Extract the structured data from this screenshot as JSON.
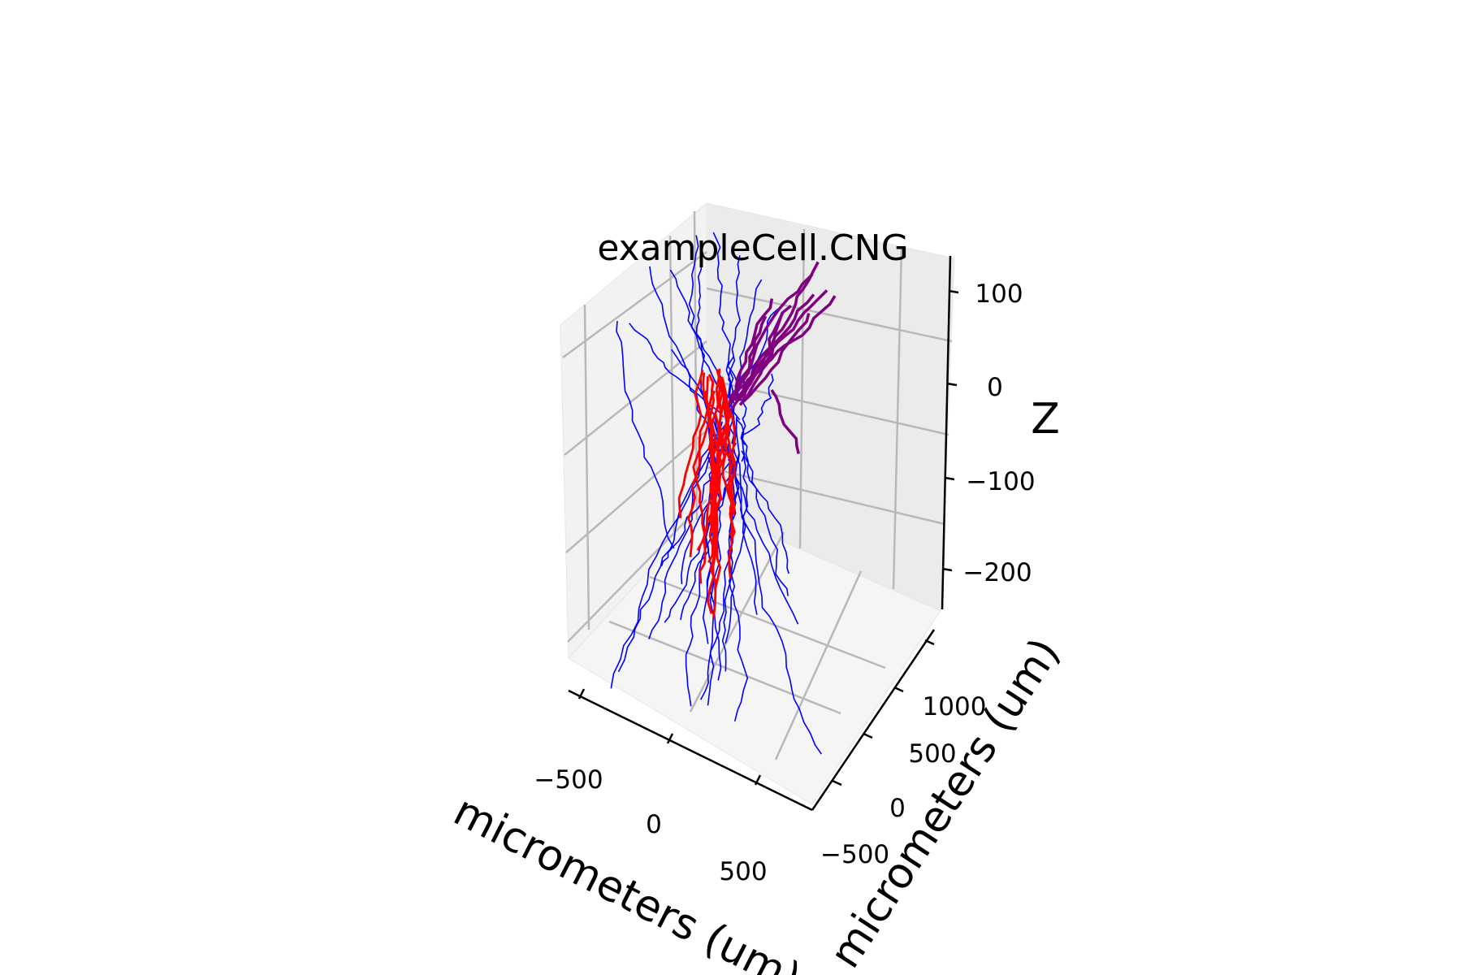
{
  "chart_data": {
    "type": "3d-line",
    "title": "exampleCell.CNG",
    "xlabel": "micrometers (um)",
    "ylabel": "micrometers (um)",
    "zlabel": "Z",
    "x_ticks": [
      "−500",
      "0",
      "500"
    ],
    "y_ticks": [
      "−500",
      "0",
      "500",
      "1000"
    ],
    "z_ticks": [
      "100",
      "0",
      "−100",
      "−200"
    ],
    "grid": true,
    "series": [
      {
        "color": "#0000ff",
        "values_note": ""
      },
      {
        "color": "#ff0000",
        "values_note": ""
      },
      {
        "color": "#800080",
        "values_note": ""
      }
    ]
  }
}
